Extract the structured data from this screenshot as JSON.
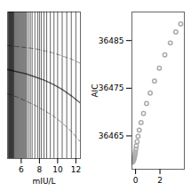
{
  "chart_data": [
    {
      "type": "line",
      "xlabel": "mIU/L",
      "x": [
        4.5,
        5.5,
        6.5,
        7.5,
        8.5,
        9.5,
        10.5,
        11.5,
        12.5
      ],
      "series": [
        {
          "color": "#666666",
          "line_style": "solid",
          "values": [
            0.5,
            0.3,
            0.1,
            -0.2,
            -0.5,
            -0.9,
            -1.4,
            -2.0,
            -2.7
          ]
        },
        {
          "color": "#999999",
          "line_style": "dashed",
          "values": [
            2.8,
            2.7,
            2.6,
            2.5,
            2.3,
            2.1,
            1.8,
            1.5,
            1.1
          ]
        },
        {
          "color": "#999999",
          "line_style": "dashed",
          "values": [
            -1.8,
            -2.1,
            -2.5,
            -2.9,
            -3.4,
            -3.9,
            -4.6,
            -5.4,
            -6.4
          ]
        }
      ],
      "rug_x": [
        4.6,
        4.65,
        4.7,
        4.75,
        4.8,
        4.85,
        4.9,
        4.95,
        5.0,
        5.05,
        5.1,
        5.15,
        5.2,
        5.3,
        5.4,
        5.5,
        5.6,
        5.7,
        5.8,
        5.9,
        6.0,
        6.1,
        6.2,
        6.3,
        6.4,
        6.5,
        6.6,
        6.8,
        7.0,
        7.2,
        7.5,
        7.8,
        8.0,
        8.2,
        8.5,
        8.8,
        9.2,
        9.6,
        10.0,
        10.5,
        11.0,
        11.5,
        12.0
      ],
      "xlim": [
        4.5,
        12.5
      ],
      "ylim": [
        -8,
        6
      ],
      "xticks": [
        6,
        8,
        10,
        12
      ],
      "tick_labels": "x"
    },
    {
      "type": "scatter",
      "ylabel": "AIC",
      "x": [
        -0.25,
        -0.2,
        -0.17,
        -0.14,
        -0.11,
        -0.08,
        -0.05,
        -0.02,
        0.02,
        0.06,
        0.12,
        0.2,
        0.3,
        0.45,
        0.65,
        0.9,
        1.2,
        1.55,
        1.95,
        2.4,
        2.85,
        3.3,
        3.7
      ],
      "values": [
        36459.5,
        36459.7,
        36459.9,
        36460.1,
        36460.4,
        36460.7,
        36461.1,
        36461.6,
        36462.2,
        36462.9,
        36463.8,
        36464.9,
        36466.2,
        36467.8,
        36469.7,
        36471.8,
        36474.0,
        36476.5,
        36479.2,
        36482.0,
        36484.5,
        36486.8,
        36488.5
      ],
      "color": "#aaaaaa",
      "marker": "hollow",
      "xlim": [
        -0.3,
        4.0
      ],
      "ylim": [
        36458,
        36491
      ],
      "xticks": [
        0,
        2
      ],
      "yticks": [
        36465,
        36475,
        36485
      ]
    }
  ]
}
